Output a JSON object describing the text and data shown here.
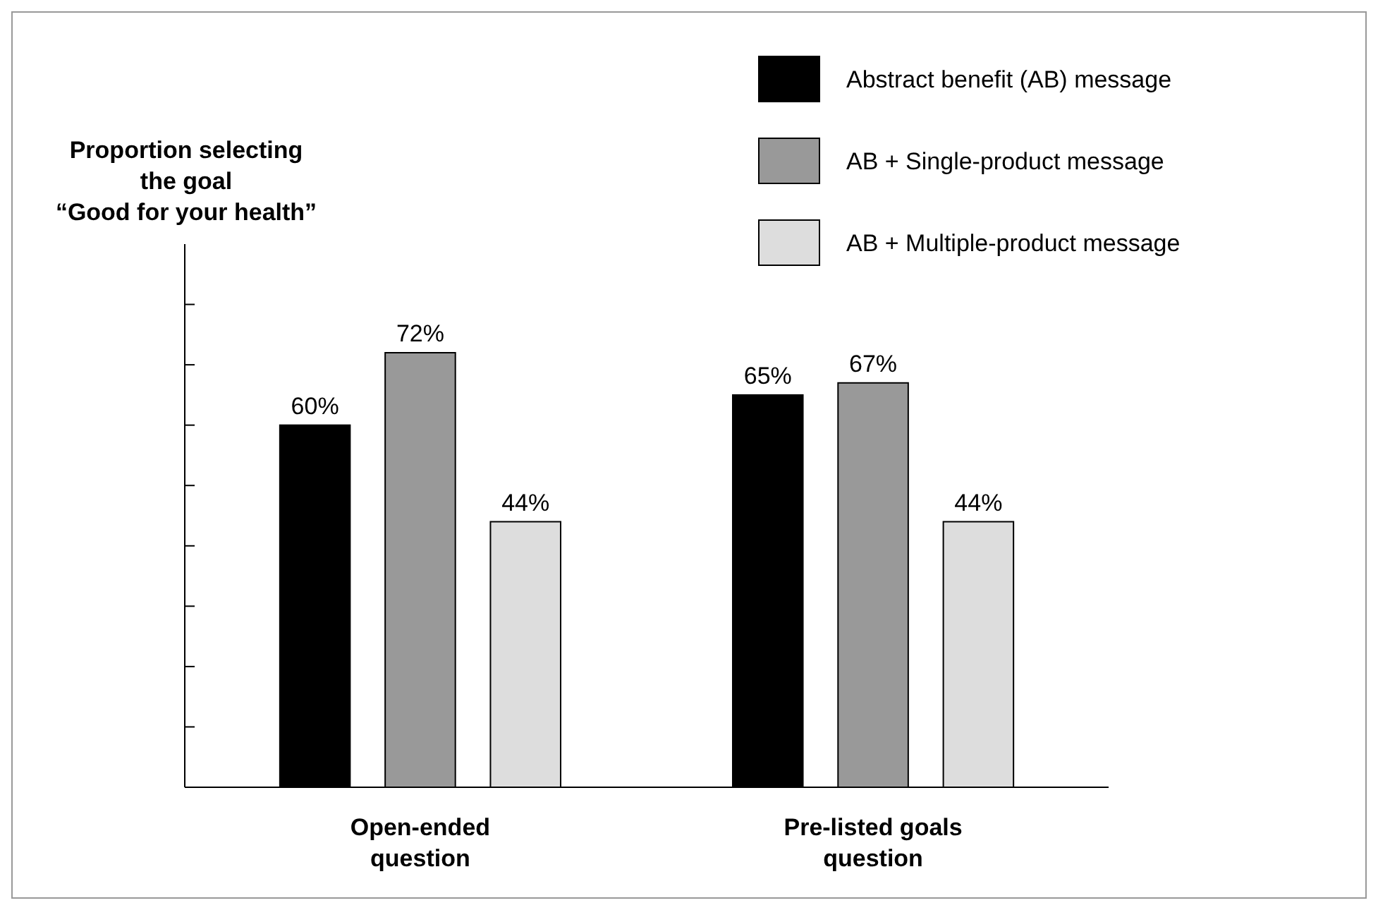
{
  "chart_data": {
    "type": "bar",
    "annotations": [
      "Proportion selecting\nthe goal\n“Good for your health”"
    ],
    "categories": [
      "Open-ended\nquestion",
      "Pre-listed goals\nquestion"
    ],
    "series": [
      {
        "name": "Abstract benefit (AB) message",
        "color": "#000000",
        "values": [
          60,
          65
        ],
        "value_labels": [
          "60%",
          "65%"
        ]
      },
      {
        "name": "AB + Single-product message",
        "color": "#999999",
        "values": [
          72,
          67
        ],
        "value_labels": [
          "72%",
          "67%"
        ]
      },
      {
        "name": "AB + Multiple-product message",
        "color": "#dddddd",
        "values": [
          44,
          44
        ],
        "value_labels": [
          "44%",
          "44%"
        ]
      }
    ],
    "tick_labels": "x",
    "legend": "top right",
    "grid": false
  }
}
